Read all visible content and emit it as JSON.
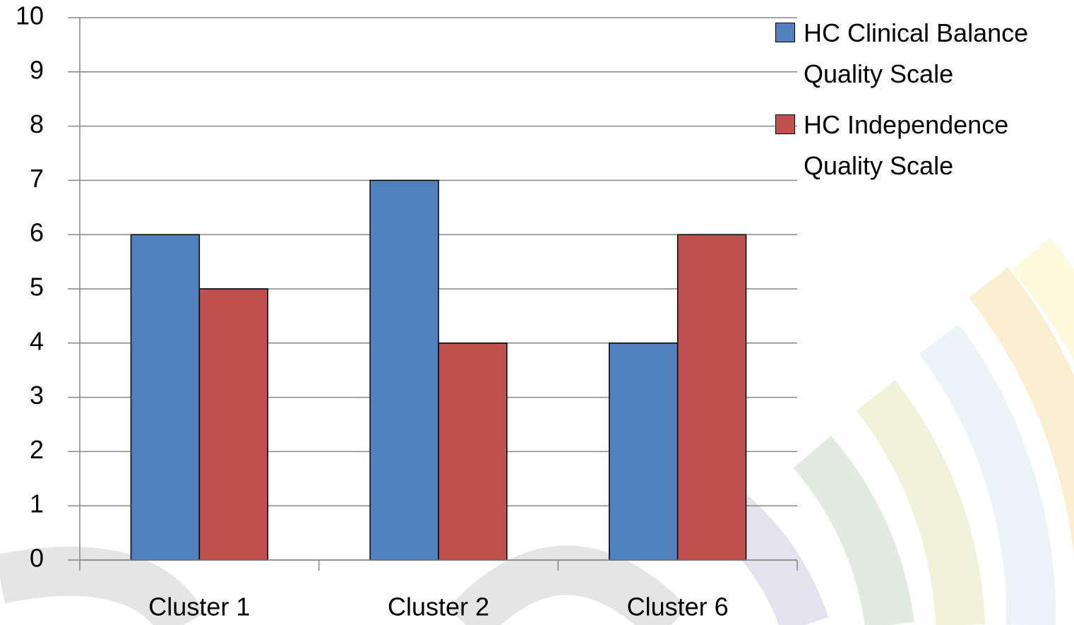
{
  "chart_data": {
    "type": "bar",
    "categories": [
      "Cluster 1",
      "Cluster 2",
      "Cluster 6"
    ],
    "series": [
      {
        "name": "HC Clinical Balance Quality Scale",
        "color": "#4f81bd",
        "values": [
          6,
          7,
          4
        ]
      },
      {
        "name": "HC Independence Quality Scale",
        "color": "#c0504d",
        "values": [
          5,
          4,
          6
        ]
      }
    ],
    "ylim": [
      0,
      10
    ],
    "yticks": [
      0,
      1,
      2,
      3,
      4,
      5,
      6,
      7,
      8,
      9,
      10
    ],
    "grid": true,
    "legend": "right"
  }
}
